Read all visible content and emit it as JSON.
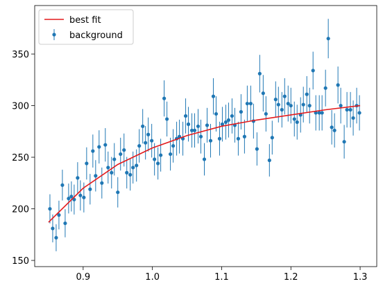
{
  "chart_data": {
    "type": "scatter",
    "xlim": [
      0.83,
      1.324
    ],
    "ylim": [
      144,
      397
    ],
    "xticks": [
      0.9,
      {
        "value": 1.0,
        "label": "1.0"
      },
      1.1,
      1.2,
      1.3
    ],
    "yticks": [
      150,
      200,
      250,
      300,
      350
    ],
    "legend": "upper left",
    "series": [
      {
        "name": "best fit",
        "type": "line",
        "color": "#e41a1c",
        "x": [
          0.85,
          0.9,
          0.95,
          1.0,
          1.05,
          1.1,
          1.15,
          1.2,
          1.25,
          1.3
        ],
        "values": [
          187,
          220,
          243,
          259,
          271,
          280,
          286,
          291,
          296,
          300
        ]
      },
      {
        "name": "background",
        "type": "errorbar",
        "color": "#1f77b4",
        "x": [
          0.852,
          0.856,
          0.861,
          0.865,
          0.87,
          0.874,
          0.879,
          0.883,
          0.887,
          0.892,
          0.896,
          0.901,
          0.905,
          0.91,
          0.914,
          0.918,
          0.923,
          0.927,
          0.932,
          0.936,
          0.941,
          0.945,
          0.95,
          0.954,
          0.959,
          0.963,
          0.968,
          0.972,
          0.977,
          0.981,
          0.986,
          0.99,
          0.994,
          0.999,
          1.003,
          1.008,
          1.012,
          1.017,
          1.021,
          1.026,
          1.03,
          1.035,
          1.039,
          1.044,
          1.048,
          1.052,
          1.057,
          1.061,
          1.066,
          1.07,
          1.075,
          1.079,
          1.084,
          1.088,
          1.092,
          1.097,
          1.101,
          1.106,
          1.11,
          1.115,
          1.119,
          1.124,
          1.128,
          1.133,
          1.137,
          1.142,
          1.146,
          1.151,
          1.155,
          1.16,
          1.164,
          1.169,
          1.173,
          1.178,
          1.182,
          1.187,
          1.191,
          1.196,
          1.2,
          1.205,
          1.209,
          1.214,
          1.218,
          1.223,
          1.227,
          1.232,
          1.236,
          1.241,
          1.245,
          1.25,
          1.254,
          1.259,
          1.263,
          1.268,
          1.272,
          1.277,
          1.281,
          1.286,
          1.29,
          1.295,
          1.299
        ],
        "values": [
          200,
          181,
          172,
          194,
          223,
          186,
          210,
          212,
          209,
          230,
          213,
          211,
          244,
          219,
          256,
          232,
          260,
          225,
          262,
          240,
          235,
          248,
          216,
          253,
          257,
          235,
          233,
          240,
          242,
          261,
          280,
          264,
          272,
          266,
          248,
          244,
          252,
          307,
          287,
          253,
          261,
          268,
          270,
          268,
          290,
          282,
          276,
          276,
          280,
          270,
          248,
          281,
          266,
          309,
          292,
          268,
          282,
          284,
          286,
          290,
          281,
          268,
          294,
          270,
          302,
          302,
          285,
          258,
          331,
          312,
          292,
          247,
          269,
          306,
          301,
          296,
          309,
          302,
          300,
          287,
          284,
          291,
          301,
          311,
          300,
          334,
          293,
          293,
          293,
          317,
          365,
          279,
          276,
          320,
          300,
          265,
          296,
          296,
          288,
          300,
          293
        ],
        "errors": [
          14.1,
          13.5,
          13.1,
          13.9,
          14.9,
          13.6,
          14.5,
          14.6,
          14.5,
          15.2,
          14.6,
          14.5,
          15.6,
          14.8,
          16.0,
          15.2,
          16.1,
          15.0,
          16.2,
          15.5,
          15.3,
          15.7,
          14.7,
          15.9,
          16.0,
          15.3,
          15.3,
          15.5,
          15.6,
          16.2,
          16.7,
          16.2,
          16.5,
          16.3,
          15.7,
          15.6,
          15.9,
          17.5,
          16.9,
          15.9,
          16.2,
          16.4,
          16.4,
          16.4,
          17.0,
          16.8,
          16.6,
          16.6,
          16.7,
          16.4,
          15.7,
          16.8,
          16.3,
          17.6,
          17.1,
          16.4,
          16.8,
          16.9,
          16.9,
          17.0,
          16.8,
          16.4,
          17.1,
          16.4,
          17.4,
          17.4,
          16.9,
          16.1,
          18.2,
          17.7,
          17.1,
          15.7,
          16.4,
          17.5,
          17.3,
          17.2,
          17.6,
          17.4,
          17.3,
          16.9,
          16.9,
          17.1,
          17.3,
          17.6,
          17.3,
          18.3,
          17.1,
          17.1,
          17.1,
          17.8,
          19.1,
          16.7,
          16.6,
          17.9,
          17.3,
          16.3,
          17.2,
          17.2,
          17.0,
          17.3,
          17.1
        ]
      }
    ]
  }
}
